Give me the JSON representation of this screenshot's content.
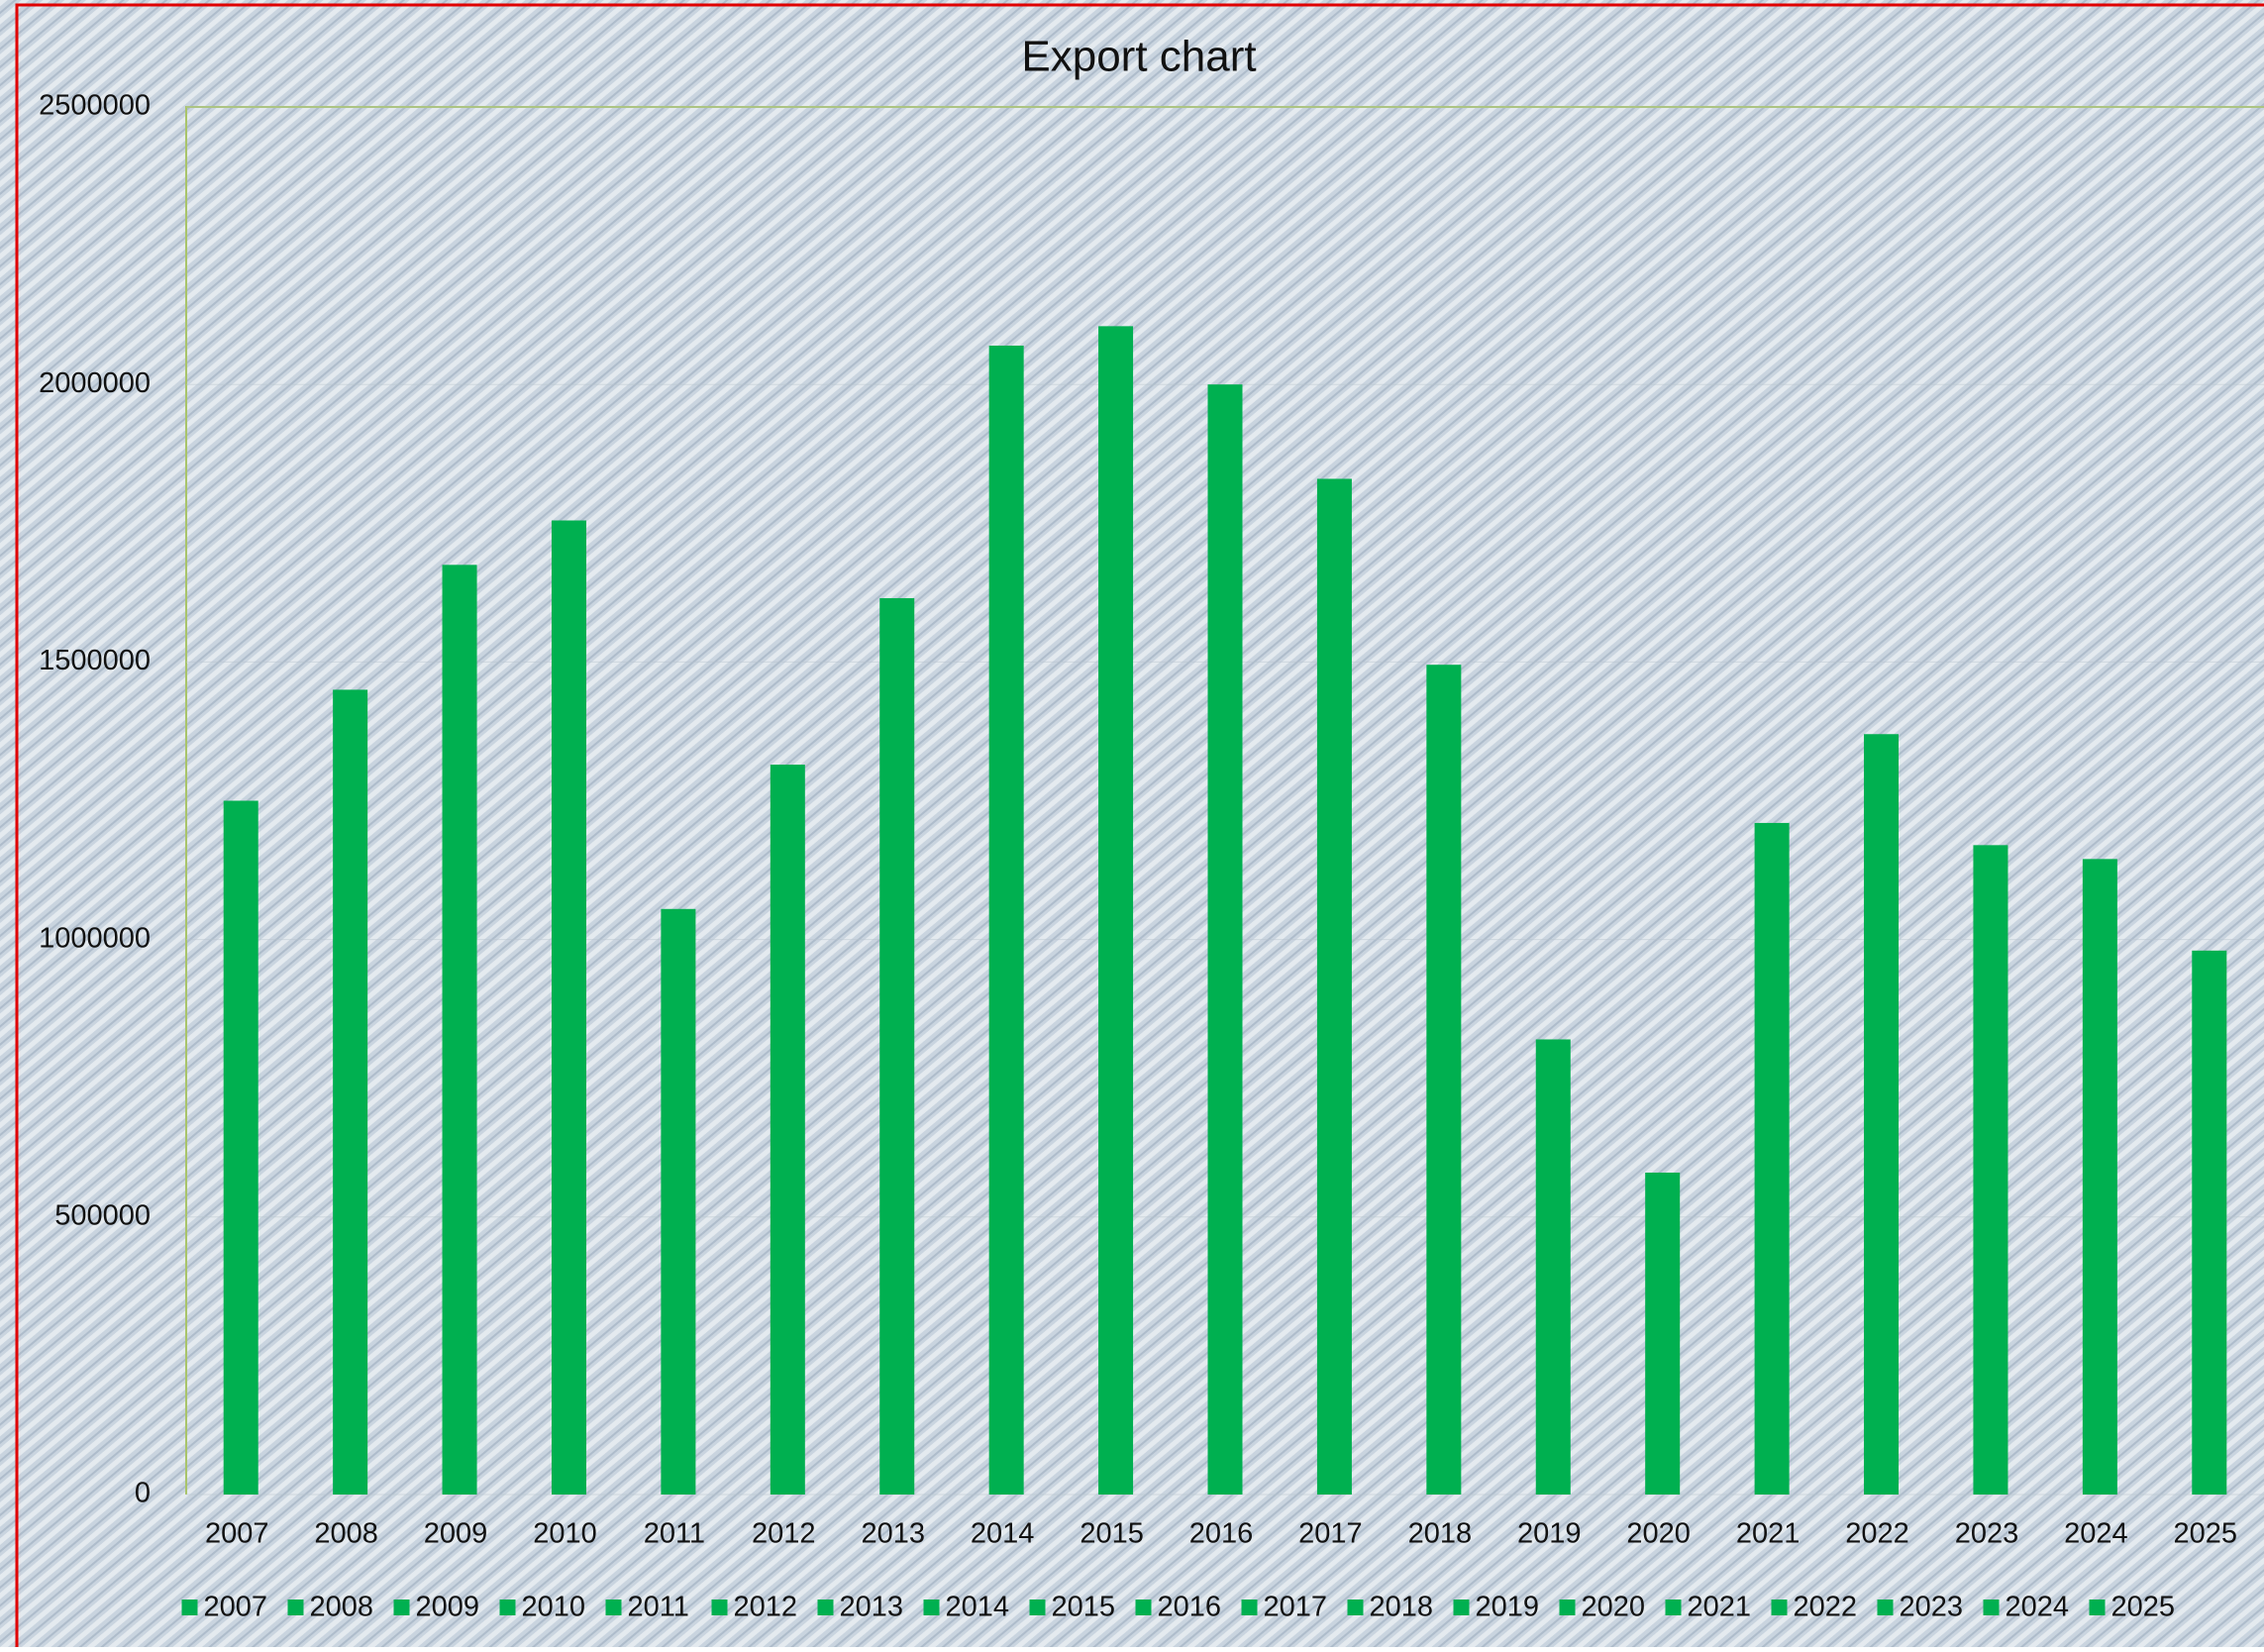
{
  "chart_data": {
    "type": "bar",
    "title": "Export chart",
    "categories": [
      "2007",
      "2008",
      "2009",
      "2010",
      "2011",
      "2012",
      "2013",
      "2014",
      "2015",
      "2016",
      "2017",
      "2018",
      "2019",
      "2020",
      "2021",
      "2022",
      "2023",
      "2024",
      "2025"
    ],
    "values": [
      1250000,
      1450000,
      1675000,
      1755000,
      1055000,
      1315000,
      1615000,
      2070000,
      2105000,
      2000000,
      1830000,
      1495000,
      820000,
      580000,
      1210000,
      1370000,
      1170000,
      1145000,
      980000
    ],
    "color": "#00b050",
    "ylim": [
      0,
      2500000
    ],
    "yticks": [
      0,
      500000,
      1000000,
      1500000,
      2000000,
      2500000
    ],
    "grid": true,
    "legend": "bottom"
  }
}
